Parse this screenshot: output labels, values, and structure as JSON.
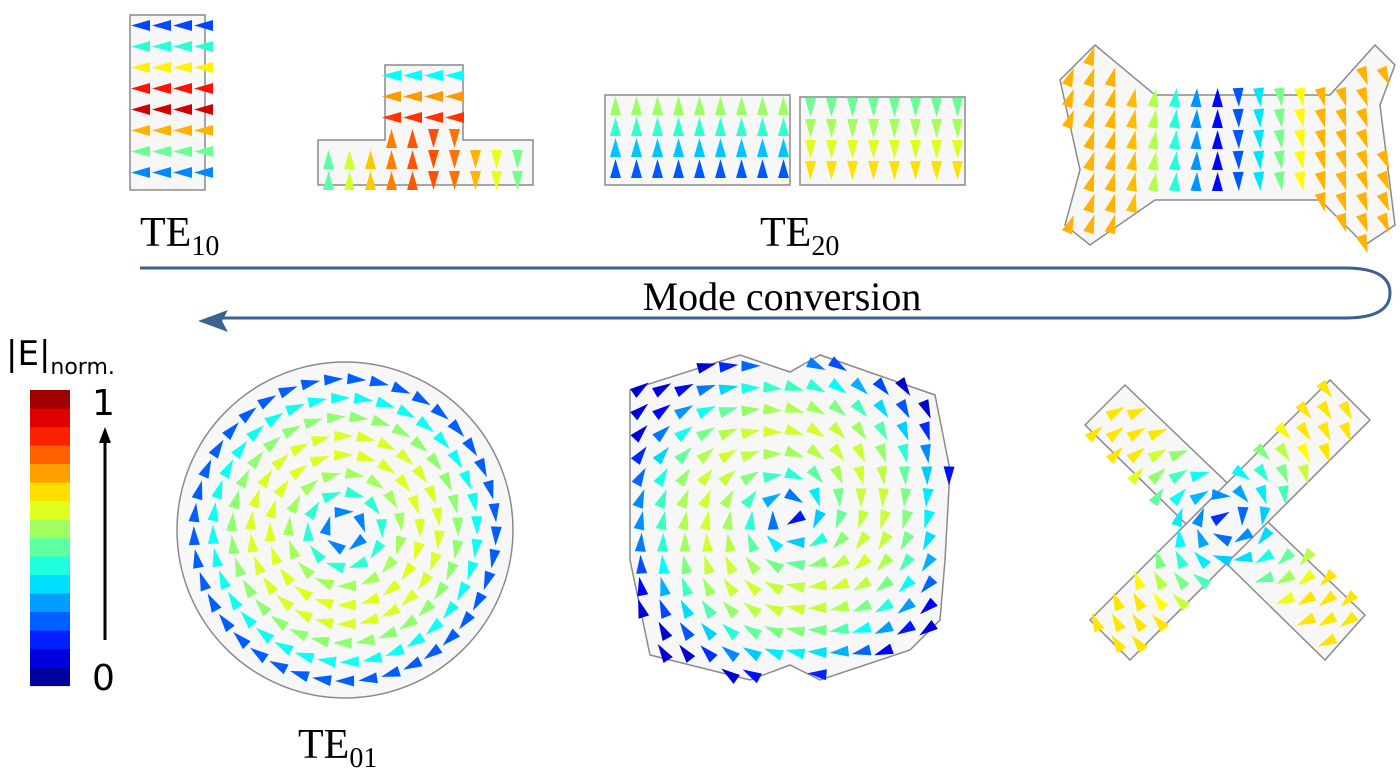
{
  "labels": {
    "te10": {
      "base": "TE",
      "sub": "10"
    },
    "te20": {
      "base": "TE",
      "sub": "20"
    },
    "te01": {
      "base": "TE",
      "sub": "01"
    }
  },
  "arrow_label": "Mode conversion",
  "colorbar": {
    "title": "|E|",
    "subscript": "norm.",
    "max": "1",
    "min": "0"
  }
}
